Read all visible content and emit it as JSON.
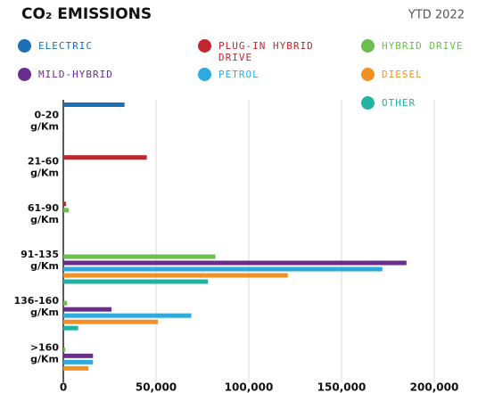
{
  "chart_data": {
    "type": "bar",
    "orientation": "horizontal",
    "title": "CO₂ EMISSIONS",
    "subtitle": "YTD 2022",
    "categories": [
      "0-20 g/Km",
      "21-60 g/Km",
      "61-90 g/Km",
      "91-135 g/Km",
      "136-160 g/Km",
      ">160 g/Km"
    ],
    "series": [
      {
        "name": "ELECTRIC",
        "color": "#1a6fb5",
        "values": [
          33000,
          0,
          0,
          0,
          0,
          0
        ]
      },
      {
        "name": "PLUG-IN HYBRID DRIVE",
        "color": "#c0282d",
        "values": [
          0,
          45000,
          1500,
          0,
          0,
          0
        ]
      },
      {
        "name": "HYBRID DRIVE",
        "color": "#6cbf4a",
        "values": [
          0,
          0,
          3000,
          82000,
          2000,
          1000
        ]
      },
      {
        "name": "MILD-HYBRID",
        "color": "#6a2d8e",
        "values": [
          0,
          0,
          0,
          185000,
          26000,
          16000
        ]
      },
      {
        "name": "PETROL",
        "color": "#2eaadc",
        "values": [
          0,
          0,
          0,
          172000,
          69000,
          16000
        ]
      },
      {
        "name": "DIESEL",
        "color": "#f29024",
        "values": [
          0,
          0,
          0,
          121000,
          51000,
          13500
        ]
      },
      {
        "name": "OTHER",
        "color": "#20b2a4",
        "values": [
          0,
          0,
          0,
          78000,
          8000,
          0
        ]
      }
    ],
    "xlim": [
      0,
      200000
    ],
    "xticks": [
      0,
      {
        "value": 50000,
        "label": "50,000"
      },
      {
        "value": 100000,
        "label": "100,000"
      },
      {
        "value": 150000,
        "label": "150,000"
      },
      {
        "value": 200000,
        "label": "200,000"
      }
    ],
    "grid": true
  }
}
